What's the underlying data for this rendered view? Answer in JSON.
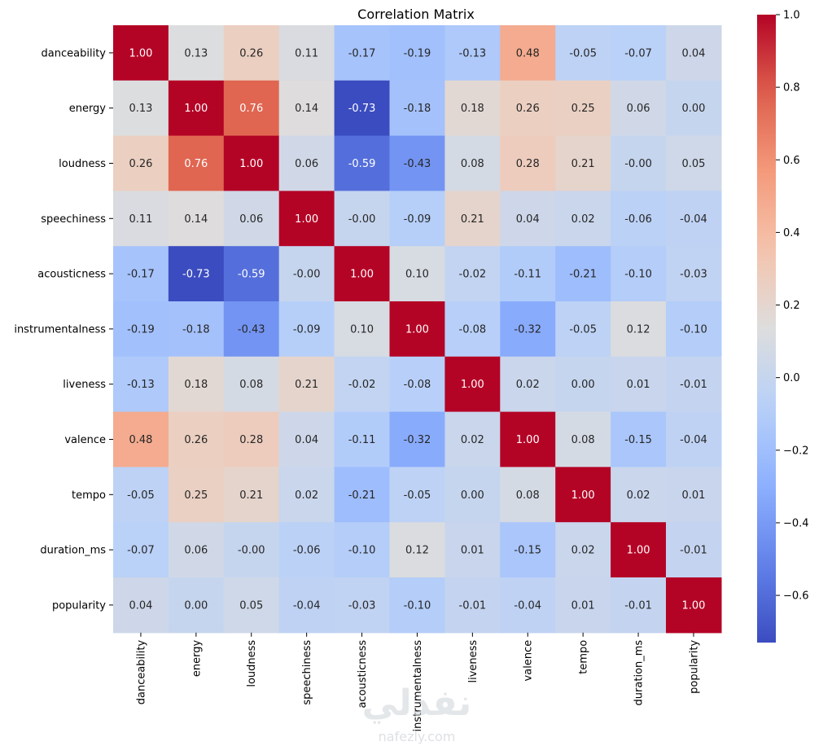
{
  "chart_data": {
    "type": "heatmap",
    "title": "Correlation Matrix",
    "xlabel": "",
    "ylabel": "",
    "labels": [
      "danceability",
      "energy",
      "loudness",
      "speechiness",
      "acousticness",
      "instrumentalness",
      "liveness",
      "valence",
      "tempo",
      "duration_ms",
      "popularity"
    ],
    "cell_text": [
      [
        "1.00",
        "0.13",
        "0.26",
        "0.11",
        "-0.17",
        "-0.19",
        "-0.13",
        "0.48",
        "-0.05",
        "-0.07",
        "0.04"
      ],
      [
        "0.13",
        "1.00",
        "0.76",
        "0.14",
        "-0.73",
        "-0.18",
        "0.18",
        "0.26",
        "0.25",
        "0.06",
        "0.00"
      ],
      [
        "0.26",
        "0.76",
        "1.00",
        "0.06",
        "-0.59",
        "-0.43",
        "0.08",
        "0.28",
        "0.21",
        "-0.00",
        "0.05"
      ],
      [
        "0.11",
        "0.14",
        "0.06",
        "1.00",
        "-0.00",
        "-0.09",
        "0.21",
        "0.04",
        "0.02",
        "-0.06",
        "-0.04"
      ],
      [
        "-0.17",
        "-0.73",
        "-0.59",
        "-0.00",
        "1.00",
        "0.10",
        "-0.02",
        "-0.11",
        "-0.21",
        "-0.10",
        "-0.03"
      ],
      [
        "-0.19",
        "-0.18",
        "-0.43",
        "-0.09",
        "0.10",
        "1.00",
        "-0.08",
        "-0.32",
        "-0.05",
        "0.12",
        "-0.10"
      ],
      [
        "-0.13",
        "0.18",
        "0.08",
        "0.21",
        "-0.02",
        "-0.08",
        "1.00",
        "0.02",
        "0.00",
        "0.01",
        "-0.01"
      ],
      [
        "0.48",
        "0.26",
        "0.28",
        "0.04",
        "-0.11",
        "-0.32",
        "0.02",
        "1.00",
        "0.08",
        "-0.15",
        "-0.04"
      ],
      [
        "-0.05",
        "0.25",
        "0.21",
        "0.02",
        "-0.21",
        "-0.05",
        "0.00",
        "0.08",
        "1.00",
        "0.02",
        "0.01"
      ],
      [
        "-0.07",
        "0.06",
        "-0.00",
        "-0.06",
        "-0.10",
        "0.12",
        "0.01",
        "-0.15",
        "0.02",
        "1.00",
        "-0.01"
      ],
      [
        "0.04",
        "0.00",
        "0.05",
        "-0.04",
        "-0.03",
        "-0.10",
        "-0.01",
        "-0.04",
        "0.01",
        "-0.01",
        "1.00"
      ]
    ],
    "colormap": "coolwarm",
    "vmin": -0.73,
    "vmax": 1.0,
    "colorbar": {
      "ticks": [
        1.0,
        0.8,
        0.6,
        0.4,
        0.2,
        0.0,
        -0.2,
        -0.4,
        -0.6
      ],
      "tick_labels": [
        "1.0",
        "0.8",
        "0.6",
        "0.4",
        "0.2",
        "0.0",
        "−0.2",
        "−0.4",
        "−0.6"
      ]
    }
  },
  "watermark": {
    "logo_text": "نفذلي",
    "site": "nafezly.com"
  }
}
